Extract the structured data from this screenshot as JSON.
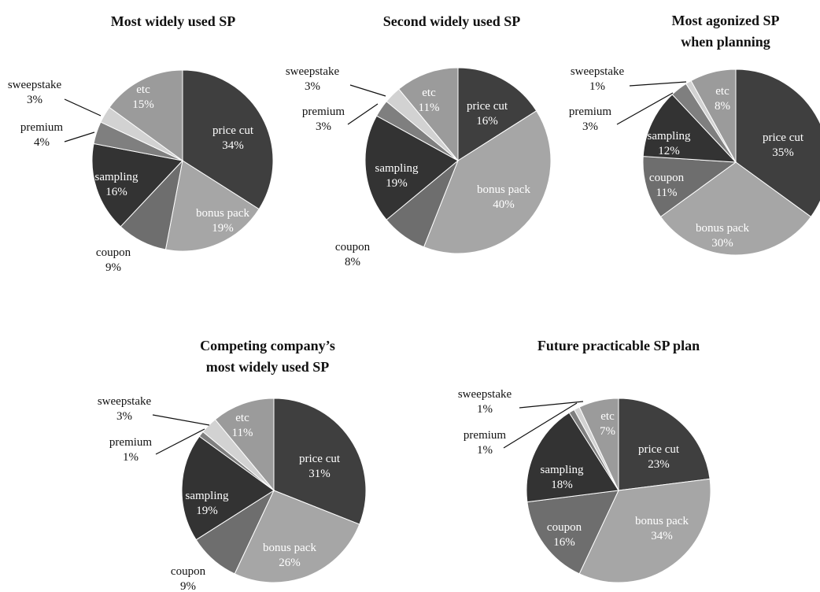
{
  "chart_data": [
    {
      "type": "pie",
      "title": [
        "Most widely used SP"
      ],
      "slices": [
        {
          "label": "price cut",
          "value": 34,
          "value_label": "34%",
          "color": "#3f3f3f"
        },
        {
          "label": "bonus pack",
          "value": 19,
          "value_label": "19%",
          "color": "#a6a6a6"
        },
        {
          "label": "coupon",
          "value": 9,
          "value_label": "9%",
          "color": "#6e6e6e"
        },
        {
          "label": "sampling",
          "value": 16,
          "value_label": "16%",
          "color": "#333333"
        },
        {
          "label": "premium",
          "value": 4,
          "value_label": "4%",
          "color": "#7f7f7f"
        },
        {
          "label": "sweepstake",
          "value": 3,
          "value_label": "3%",
          "color": "#d2d2d2"
        },
        {
          "label": "etc",
          "value": 15,
          "value_label": "15%",
          "color": "#9b9b9b"
        }
      ]
    },
    {
      "type": "pie",
      "title": [
        "Second widely used SP"
      ],
      "slices": [
        {
          "label": "price cut",
          "value": 16,
          "value_label": "16%",
          "color": "#3f3f3f"
        },
        {
          "label": "bonus pack",
          "value": 40,
          "value_label": "40%",
          "color": "#a6a6a6"
        },
        {
          "label": "coupon",
          "value": 8,
          "value_label": "8%",
          "color": "#6e6e6e"
        },
        {
          "label": "sampling",
          "value": 19,
          "value_label": "19%",
          "color": "#333333"
        },
        {
          "label": "premium",
          "value": 3,
          "value_label": "3%",
          "color": "#7f7f7f"
        },
        {
          "label": "sweepstake",
          "value": 3,
          "value_label": "3%",
          "color": "#d2d2d2"
        },
        {
          "label": "etc",
          "value": 11,
          "value_label": "11%",
          "color": "#9b9b9b"
        }
      ]
    },
    {
      "type": "pie",
      "title": [
        "Most agonized SP",
        "when planning"
      ],
      "slices": [
        {
          "label": "price cut",
          "value": 35,
          "value_label": "35%",
          "color": "#3f3f3f"
        },
        {
          "label": "bonus pack",
          "value": 30,
          "value_label": "30%",
          "color": "#a6a6a6"
        },
        {
          "label": "coupon",
          "value": 11,
          "value_label": "11%",
          "color": "#6e6e6e"
        },
        {
          "label": "sampling",
          "value": 12,
          "value_label": "12%",
          "color": "#333333"
        },
        {
          "label": "premium",
          "value": 3,
          "value_label": "3%",
          "color": "#7f7f7f"
        },
        {
          "label": "sweepstake",
          "value": 1,
          "value_label": "1%",
          "color": "#d2d2d2"
        },
        {
          "label": "etc",
          "value": 8,
          "value_label": "8%",
          "color": "#9b9b9b"
        }
      ]
    },
    {
      "type": "pie",
      "title": [
        "Competing company’s",
        "most widely used SP"
      ],
      "slices": [
        {
          "label": "price cut",
          "value": 31,
          "value_label": "31%",
          "color": "#3f3f3f"
        },
        {
          "label": "bonus pack",
          "value": 26,
          "value_label": "26%",
          "color": "#a6a6a6"
        },
        {
          "label": "coupon",
          "value": 9,
          "value_label": "9%",
          "color": "#6e6e6e"
        },
        {
          "label": "sampling",
          "value": 19,
          "value_label": "19%",
          "color": "#333333"
        },
        {
          "label": "premium",
          "value": 1,
          "value_label": "1%",
          "color": "#7f7f7f"
        },
        {
          "label": "sweepstake",
          "value": 3,
          "value_label": "3%",
          "color": "#d2d2d2"
        },
        {
          "label": "etc",
          "value": 11,
          "value_label": "11%",
          "color": "#9b9b9b"
        }
      ]
    },
    {
      "type": "pie",
      "title": [
        "Future practicable SP plan"
      ],
      "slices": [
        {
          "label": "price cut",
          "value": 23,
          "value_label": "23%",
          "color": "#3f3f3f"
        },
        {
          "label": "bonus pack",
          "value": 34,
          "value_label": "34%",
          "color": "#a6a6a6"
        },
        {
          "label": "coupon",
          "value": 16,
          "value_label": "16%",
          "color": "#6e6e6e"
        },
        {
          "label": "sampling",
          "value": 18,
          "value_label": "18%",
          "color": "#333333"
        },
        {
          "label": "premium",
          "value": 1,
          "value_label": "1%",
          "color": "#7f7f7f"
        },
        {
          "label": "sweepstake",
          "value": 1,
          "value_label": "1%",
          "color": "#d2d2d2"
        },
        {
          "label": "etc",
          "value": 7,
          "value_label": "7%",
          "color": "#9b9b9b"
        }
      ]
    }
  ]
}
